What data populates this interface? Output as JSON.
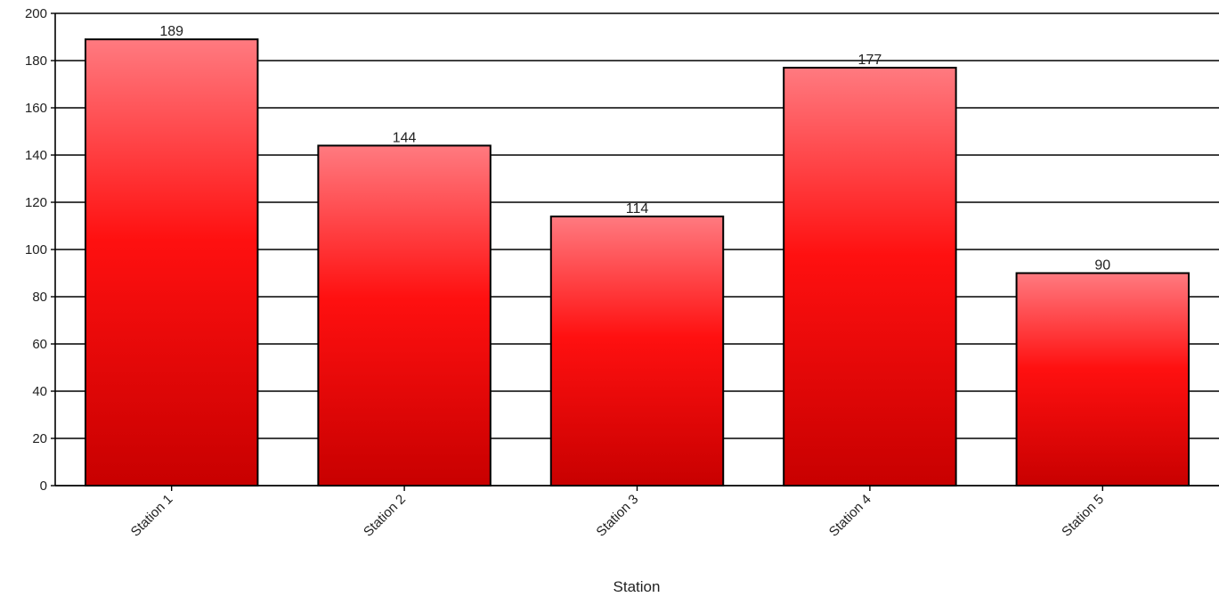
{
  "chart_data": {
    "type": "bar",
    "title": "",
    "xlabel": "Station",
    "ylabel": "",
    "categories": [
      "Station 1",
      "Station 2",
      "Station 3",
      "Station 4",
      "Station 5"
    ],
    "values": [
      189,
      144,
      114,
      177,
      90
    ],
    "ylim": [
      0,
      200
    ],
    "yticks": [
      0,
      20,
      40,
      60,
      80,
      100,
      120,
      140,
      160,
      180,
      200
    ],
    "grid": true,
    "legend": "none",
    "data_labels": true,
    "colors": {
      "bar_top": "#ff7a80",
      "bar_mid": "#ff1010",
      "bar_bottom": "#c80000",
      "bar_outline": "#000000",
      "grid": "#000000",
      "axis": "#000000"
    }
  }
}
